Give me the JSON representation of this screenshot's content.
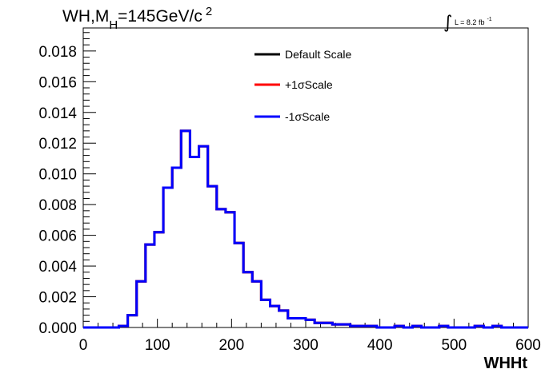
{
  "chart_data": {
    "type": "step",
    "title_main": "WH,M",
    "title_sub": "H",
    "title_tail": "=145GeV/c",
    "title_sup": "2",
    "lumi_sign": "∫",
    "lumi_text": "L = 8.2 fb",
    "lumi_sup": "-1",
    "xlabel": "WHHt",
    "ylabel": "",
    "xlim": [
      0,
      600
    ],
    "ylim": [
      0,
      0.0195
    ],
    "x_ticks": [
      0,
      100,
      200,
      300,
      400,
      500,
      600
    ],
    "x_tick_labels": [
      "0",
      "100",
      "200",
      "300",
      "400",
      "500",
      "600"
    ],
    "y_ticks": [
      0,
      0.002,
      0.004,
      0.006,
      0.008,
      0.01,
      0.012,
      0.014,
      0.016,
      0.018
    ],
    "y_tick_labels": [
      "0.000",
      "0.002",
      "0.004",
      "0.006",
      "0.008",
      "0.010",
      "0.012",
      "0.014",
      "0.016",
      "0.018"
    ],
    "bin_edges": [
      0,
      12,
      24,
      36,
      48,
      60,
      72,
      84,
      96,
      108,
      120,
      132,
      144,
      156,
      168,
      180,
      192,
      204,
      216,
      228,
      240,
      252,
      264,
      276,
      288,
      300,
      312,
      324,
      336,
      348,
      360,
      372,
      384,
      396,
      408,
      420,
      432,
      444,
      456,
      468,
      480,
      492,
      504,
      516,
      528,
      540,
      552,
      564,
      576,
      588,
      600
    ],
    "series": [
      {
        "name": "Default Scale",
        "color": "#000000",
        "values": [
          0,
          0,
          0,
          0,
          0.0001,
          0.0008,
          0.003,
          0.0054,
          0.0062,
          0.0091,
          0.0104,
          0.0128,
          0.0111,
          0.0118,
          0.0092,
          0.0077,
          0.0075,
          0.0055,
          0.0036,
          0.003,
          0.0018,
          0.0014,
          0.0011,
          0.0006,
          0.0006,
          0.0005,
          0.0003,
          0.0003,
          0.0002,
          0.0002,
          0.0001,
          0.0001,
          0.0001,
          0,
          0,
          0.0001,
          0,
          0.0001,
          0,
          0,
          0.0001,
          0,
          0,
          0,
          0.0001,
          0,
          0.0001,
          0,
          0,
          0
        ]
      },
      {
        "name": "+1σScale",
        "color": "#ff0000",
        "values": [
          0,
          0,
          0,
          0,
          0.0001,
          0.0008,
          0.003,
          0.0054,
          0.0062,
          0.0091,
          0.0104,
          0.0128,
          0.0111,
          0.0118,
          0.0092,
          0.0077,
          0.0075,
          0.0055,
          0.0036,
          0.003,
          0.0018,
          0.0014,
          0.0011,
          0.0006,
          0.0006,
          0.0005,
          0.0003,
          0.0003,
          0.0002,
          0.0002,
          0.0001,
          0.0001,
          0.0001,
          0,
          0,
          0.0001,
          0,
          0.0001,
          0,
          0,
          0.0001,
          0,
          0,
          0,
          0.0001,
          0,
          0.0001,
          0,
          0,
          0
        ]
      },
      {
        "name": "-1σScale",
        "color": "#0000ff",
        "values": [
          0,
          0,
          0,
          0,
          0.0001,
          0.0008,
          0.003,
          0.0054,
          0.0062,
          0.0091,
          0.0104,
          0.0128,
          0.0111,
          0.0118,
          0.0092,
          0.0077,
          0.0075,
          0.0055,
          0.0036,
          0.003,
          0.0018,
          0.0014,
          0.0011,
          0.0006,
          0.0006,
          0.0005,
          0.0003,
          0.0003,
          0.0002,
          0.0002,
          0.0001,
          0.0001,
          0.0001,
          0,
          0,
          0.0001,
          0,
          0.0001,
          0,
          0,
          0.0001,
          0,
          0,
          0,
          0.0001,
          0,
          0.0001,
          0,
          0,
          0
        ]
      }
    ],
    "legend_position": "top-center"
  }
}
